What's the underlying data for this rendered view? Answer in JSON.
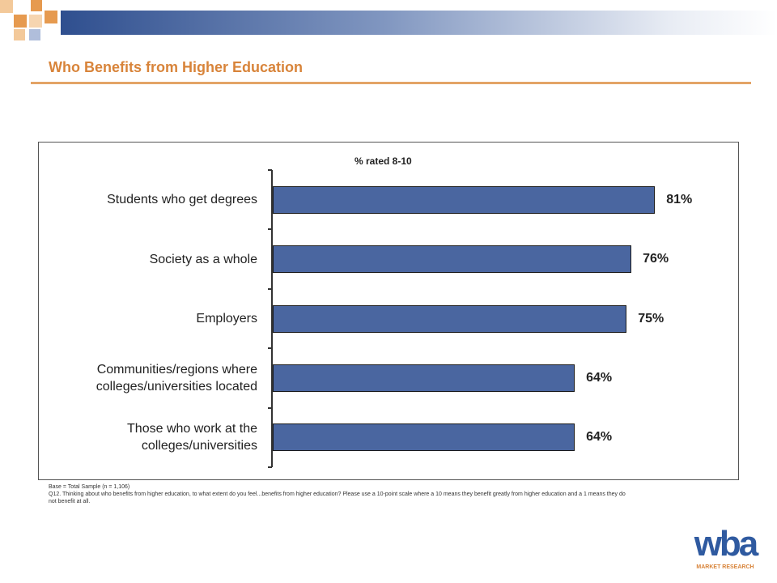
{
  "slide": {
    "title": "Who Benefits from Higher Education",
    "footnotes": [
      "Base = Total Sample (n = 1,106)",
      "Q12. Thinking about who benefits from higher education, to what extent do you feel...benefits from higher education? Please use a 10-point scale where a 10 means they benefit greatly from higher education and a 1 means they do not benefit at all."
    ],
    "logo": {
      "name": "wba",
      "tagline": "MARKET RESEARCH"
    }
  },
  "chart_data": {
    "type": "bar",
    "orientation": "horizontal",
    "title": "% rated 8-10",
    "categories": [
      "Students who get degrees",
      "Society as a whole",
      "Employers",
      "Communities/regions where colleges/universities located",
      "Those who work at the colleges/universities"
    ],
    "values": [
      81,
      76,
      75,
      64,
      64
    ],
    "value_labels": [
      "81%",
      "76%",
      "75%",
      "64%",
      "64%"
    ],
    "color": "#4a66a0"
  }
}
